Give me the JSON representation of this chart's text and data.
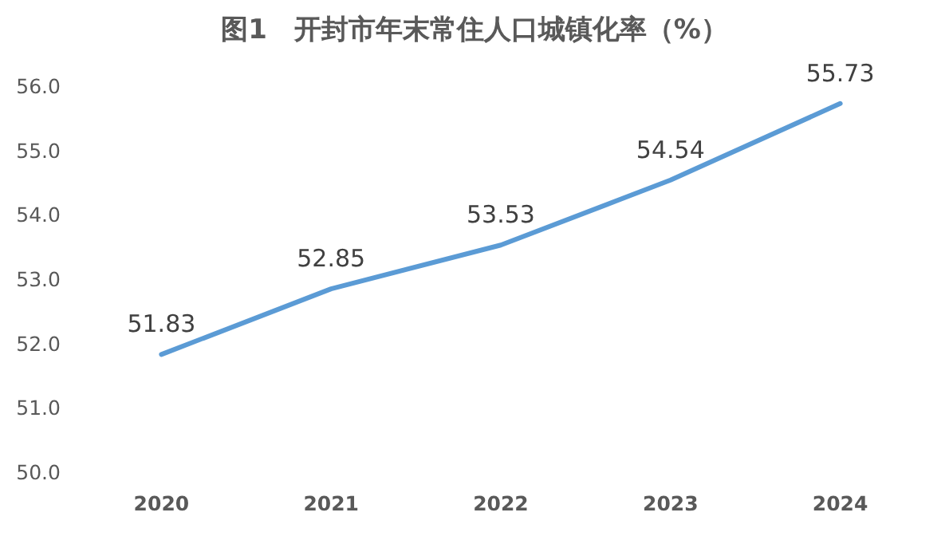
{
  "chart_data": {
    "type": "line",
    "title": "图1　开封市年末常住人口城镇化率（%）",
    "categories": [
      "2020",
      "2021",
      "2022",
      "2023",
      "2024"
    ],
    "values": [
      51.83,
      52.85,
      53.53,
      54.54,
      55.73
    ],
    "color": "#5b9bd5",
    "ylim": [
      50,
      56
    ],
    "yticks": [
      {
        "value": 50,
        "label": "50.0"
      },
      {
        "value": 51,
        "label": "51.0"
      },
      {
        "value": 52,
        "label": "52.0"
      },
      {
        "value": 53,
        "label": "53.0"
      },
      {
        "value": 54,
        "label": "54.0"
      },
      {
        "value": 55,
        "label": "55.0"
      },
      {
        "value": 56,
        "label": "56.0"
      }
    ],
    "data_labels": true
  }
}
